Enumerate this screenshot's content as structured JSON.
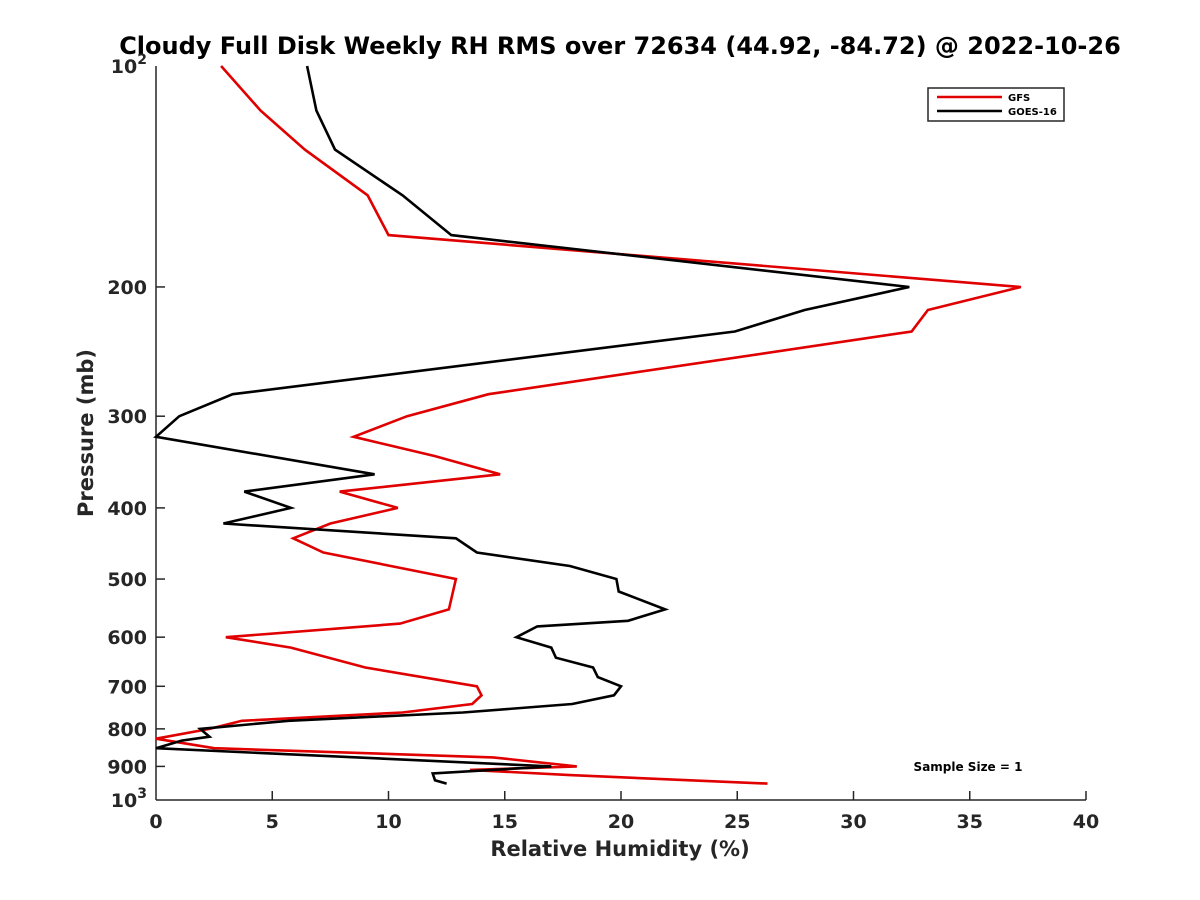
{
  "chart_data": {
    "type": "line",
    "title": "Cloudy Full Disk Weekly RH RMS over 72634 (44.92, -84.72) @ 2022-10-26",
    "xlabel": "Relative Humidity (%)",
    "ylabel": "Pressure (mb)",
    "xlim": [
      0,
      40
    ],
    "ylim": [
      100,
      1000
    ],
    "yscale": "log",
    "y_reversed": true,
    "grid": false,
    "legend_position": "top-right",
    "x_ticks": [
      "0",
      "5",
      "10",
      "15",
      "20",
      "25",
      "30",
      "35",
      "40"
    ],
    "y_ticks": [
      {
        "value": 100,
        "base": "10",
        "exp": "2"
      },
      {
        "value": 200,
        "label": "200"
      },
      {
        "value": 300,
        "label": "300"
      },
      {
        "value": 400,
        "label": "400"
      },
      {
        "value": 500,
        "label": "500"
      },
      {
        "value": 600,
        "label": "600"
      },
      {
        "value": 700,
        "label": "700"
      },
      {
        "value": 800,
        "label": "800"
      },
      {
        "value": 900,
        "label": "900"
      },
      {
        "value": 1000,
        "base": "10",
        "exp": "3"
      }
    ],
    "series": [
      {
        "name": "GFS",
        "color": "#e00000",
        "points": [
          [
            2.8,
            100
          ],
          [
            4.5,
            115
          ],
          [
            6.4,
            130
          ],
          [
            9.1,
            150
          ],
          [
            10.0,
            170
          ],
          [
            37.2,
            200
          ],
          [
            33.2,
            215
          ],
          [
            32.5,
            230
          ],
          [
            14.3,
            280
          ],
          [
            10.8,
            300
          ],
          [
            8.5,
            320
          ],
          [
            12.0,
            340
          ],
          [
            14.8,
            360
          ],
          [
            7.9,
            380
          ],
          [
            10.4,
            400
          ],
          [
            7.5,
            420
          ],
          [
            5.9,
            440
          ],
          [
            7.2,
            460
          ],
          [
            12.9,
            500
          ],
          [
            12.6,
            550
          ],
          [
            10.5,
            575
          ],
          [
            3.0,
            600
          ],
          [
            5.8,
            620
          ],
          [
            9.0,
            660
          ],
          [
            13.8,
            700
          ],
          [
            14.0,
            720
          ],
          [
            13.6,
            740
          ],
          [
            10.6,
            760
          ],
          [
            3.7,
            780
          ],
          [
            2.3,
            800
          ],
          [
            0.0,
            825
          ],
          [
            2.5,
            850
          ],
          [
            14.5,
            875
          ],
          [
            18.1,
            900
          ],
          [
            13.5,
            910
          ],
          [
            17.8,
            925
          ],
          [
            26.3,
            950
          ]
        ]
      },
      {
        "name": "GOES-16",
        "color": "#000000",
        "points": [
          [
            6.5,
            100
          ],
          [
            6.9,
            115
          ],
          [
            7.7,
            130
          ],
          [
            10.6,
            150
          ],
          [
            12.7,
            170
          ],
          [
            32.4,
            200
          ],
          [
            27.9,
            215
          ],
          [
            24.9,
            230
          ],
          [
            3.3,
            280
          ],
          [
            1.0,
            300
          ],
          [
            0.0,
            320
          ],
          [
            9.4,
            360
          ],
          [
            3.8,
            380
          ],
          [
            5.8,
            400
          ],
          [
            2.9,
            420
          ],
          [
            12.9,
            440
          ],
          [
            13.8,
            460
          ],
          [
            17.8,
            480
          ],
          [
            19.8,
            500
          ],
          [
            19.9,
            520
          ],
          [
            21.9,
            550
          ],
          [
            20.3,
            570
          ],
          [
            16.4,
            580
          ],
          [
            15.5,
            600
          ],
          [
            17.0,
            620
          ],
          [
            17.2,
            640
          ],
          [
            18.8,
            660
          ],
          [
            19.0,
            680
          ],
          [
            20.0,
            700
          ],
          [
            19.7,
            720
          ],
          [
            17.9,
            740
          ],
          [
            13.2,
            760
          ],
          [
            5.7,
            780
          ],
          [
            1.9,
            800
          ],
          [
            2.3,
            820
          ],
          [
            1.1,
            830
          ],
          [
            0.0,
            850
          ],
          [
            17.0,
            900
          ],
          [
            11.9,
            920
          ],
          [
            12.0,
            940
          ],
          [
            12.5,
            950
          ]
        ]
      }
    ],
    "annotation": "Sample Size = 1"
  }
}
